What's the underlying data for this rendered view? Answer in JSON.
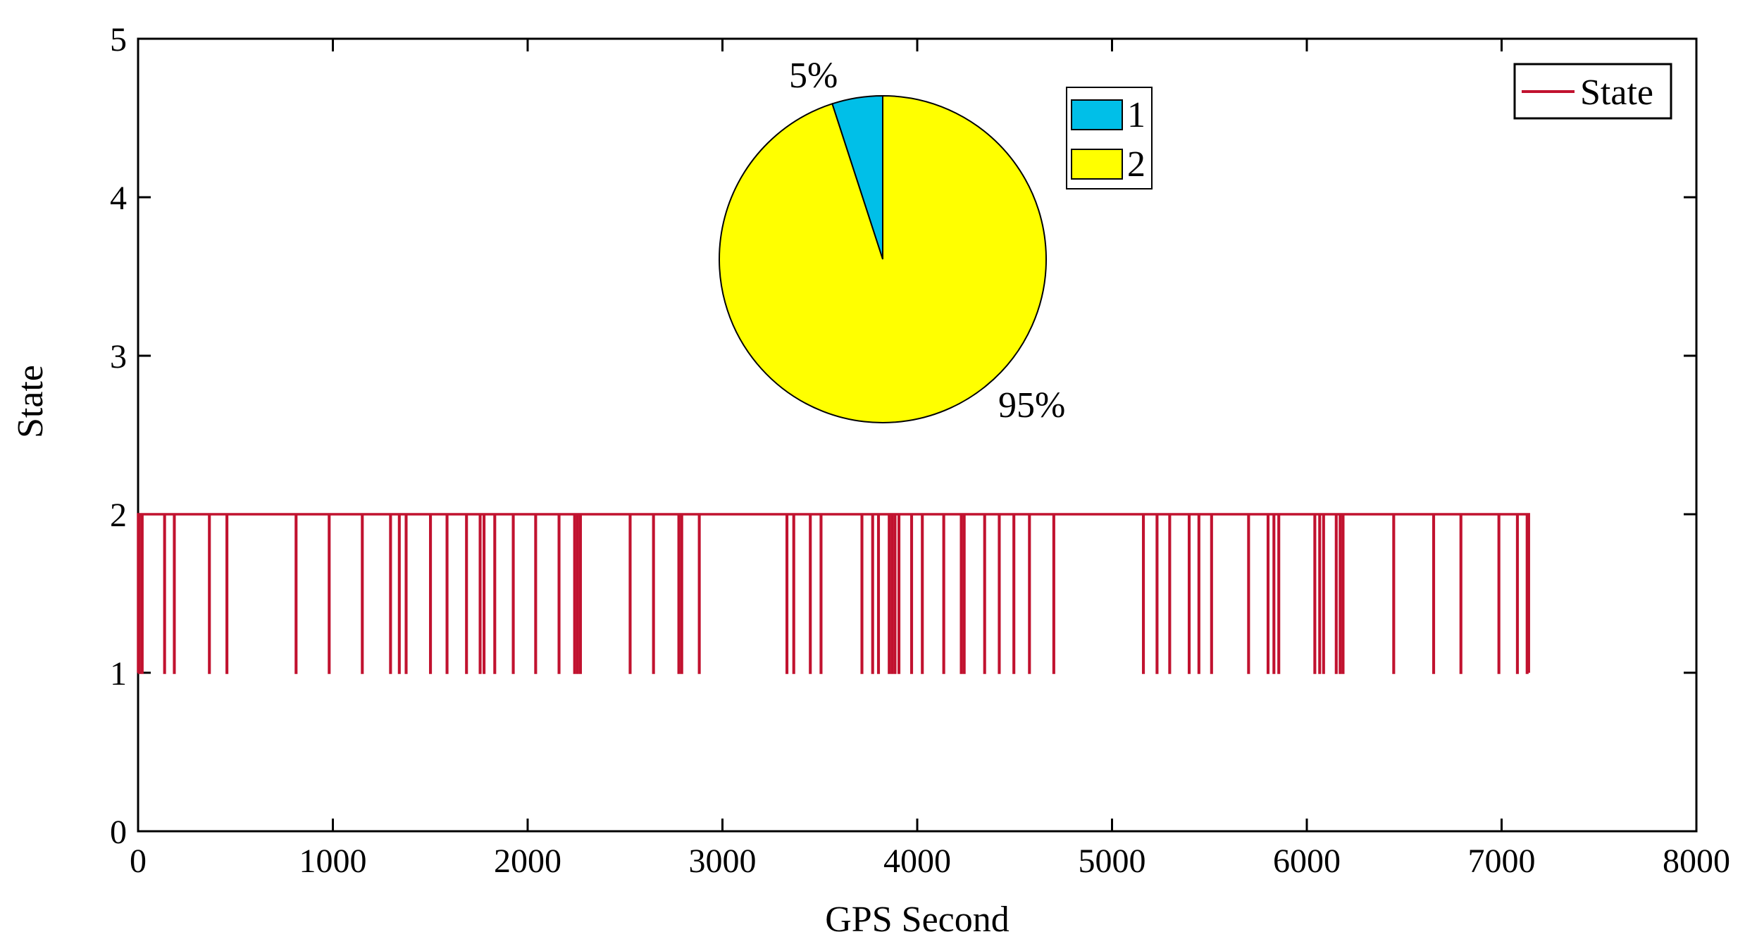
{
  "chart_data": [
    {
      "type": "line",
      "xlabel": "GPS Second",
      "ylabel": "State",
      "xlim": [
        0,
        8000
      ],
      "ylim": [
        0,
        5
      ],
      "xticks": [
        0,
        1000,
        2000,
        3000,
        4000,
        5000,
        6000,
        7000,
        8000
      ],
      "yticks": [
        0,
        1,
        2,
        3,
        4,
        5
      ],
      "grid": false,
      "legend_position": "top-right",
      "series": [
        {
          "name": "State",
          "color": "#c1122f",
          "baseline": 2,
          "dips_to": 1,
          "x_start": 0,
          "x_end": 7140,
          "dip_x": [
            5,
            20,
            135,
            185,
            365,
            455,
            810,
            980,
            1150,
            1295,
            1340,
            1375,
            1500,
            1585,
            1685,
            1755,
            1775,
            1830,
            1925,
            2040,
            2160,
            2240,
            2255,
            2270,
            2525,
            2645,
            2775,
            2790,
            2880,
            3330,
            3365,
            3450,
            3505,
            3715,
            3770,
            3800,
            3855,
            3870,
            3885,
            3905,
            3970,
            4025,
            4135,
            4225,
            4240,
            4345,
            4420,
            4495,
            4575,
            4700,
            5160,
            5230,
            5295,
            5395,
            5445,
            5510,
            5700,
            5800,
            5830,
            5855,
            6040,
            6065,
            6085,
            6150,
            6170,
            6185,
            6445,
            6650,
            6790,
            6985,
            7080,
            7130
          ]
        }
      ]
    },
    {
      "type": "pie",
      "slices": [
        {
          "label": "1",
          "value": 5,
          "text": "5%",
          "color": "#00bfe8"
        },
        {
          "label": "2",
          "value": 95,
          "text": "95%",
          "color": "#ffff00"
        }
      ],
      "legend_position": "right"
    }
  ]
}
